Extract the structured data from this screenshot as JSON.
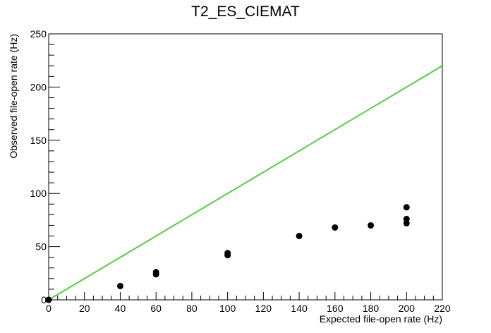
{
  "chart_data": {
    "type": "scatter",
    "title": "T2_ES_CIEMAT",
    "xlabel": "Expected file-open rate (Hz)",
    "ylabel": "Observed file-open rate (Hz)",
    "xlim": [
      0,
      220
    ],
    "ylim": [
      0,
      250
    ],
    "x_ticks": [
      0,
      20,
      40,
      60,
      80,
      100,
      120,
      140,
      160,
      180,
      200,
      220
    ],
    "y_ticks": [
      0,
      50,
      100,
      150,
      200,
      250
    ],
    "grid": false,
    "legend": "none",
    "series": [
      {
        "type": "scatter",
        "color": "#000000",
        "points": [
          {
            "x": 0,
            "y": 0
          },
          {
            "x": 0,
            "y": 0
          },
          {
            "x": 40,
            "y": 13
          },
          {
            "x": 60,
            "y": 24
          },
          {
            "x": 60,
            "y": 26
          },
          {
            "x": 100,
            "y": 42
          },
          {
            "x": 100,
            "y": 44
          },
          {
            "x": 140,
            "y": 60
          },
          {
            "x": 160,
            "y": 68
          },
          {
            "x": 180,
            "y": 70
          },
          {
            "x": 200,
            "y": 72
          },
          {
            "x": 200,
            "y": 76
          },
          {
            "x": 200,
            "y": 87
          }
        ]
      },
      {
        "type": "line",
        "color": "#55cc44",
        "points": [
          {
            "x": 0,
            "y": 0
          },
          {
            "x": 220,
            "y": 220
          }
        ]
      }
    ]
  }
}
